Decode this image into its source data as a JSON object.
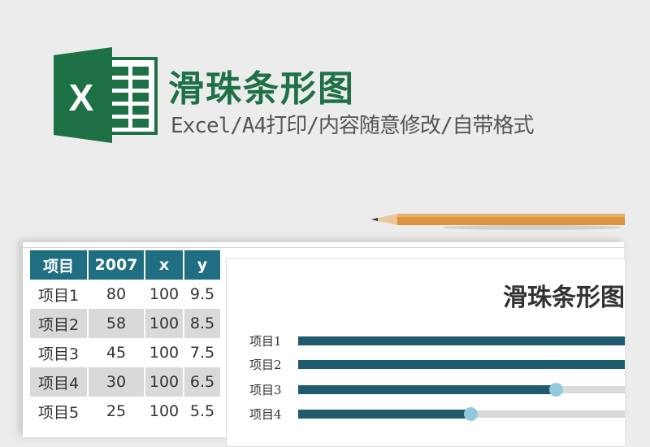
{
  "header": {
    "title": "滑珠条形图",
    "subtitle": "Excel/A4打印/内容随意修改/自带格式",
    "logo_letter": "X",
    "brand_color": "#1e7145"
  },
  "table": {
    "headers": [
      "项目",
      "2007",
      "x",
      "y"
    ],
    "rows": [
      [
        "项目1",
        "80",
        "100",
        "9.5"
      ],
      [
        "项目2",
        "58",
        "100",
        "8.5"
      ],
      [
        "项目3",
        "45",
        "100",
        "7.5"
      ],
      [
        "项目4",
        "30",
        "100",
        "6.5"
      ],
      [
        "项目5",
        "25",
        "100",
        "5.5"
      ]
    ],
    "header_color": "#1f6e82"
  },
  "chart_data": {
    "type": "bar",
    "orientation": "horizontal",
    "title": "滑珠条形图",
    "categories": [
      "项目1",
      "项目2",
      "项目3",
      "项目4"
    ],
    "values": [
      80,
      58,
      45,
      30
    ],
    "visible_xlim": [
      0,
      57
    ],
    "bar_color": "#1d5b6d",
    "track_color": "#d9d9d9",
    "bead_color": "#92c9dc"
  }
}
